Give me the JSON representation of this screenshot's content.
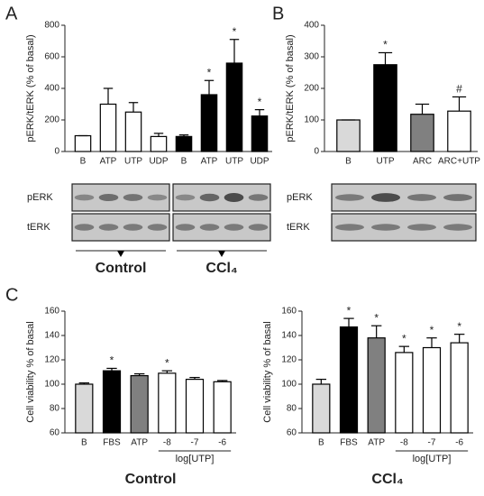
{
  "chart_data": [
    {
      "type": "bar",
      "panel": "A",
      "ylabel": "pERK/tERK (% of basal)",
      "categories": [
        "B",
        "ATP",
        "UTP",
        "UDP",
        "B",
        "ATP",
        "UTP",
        "UDP"
      ],
      "values": [
        100,
        300,
        250,
        95,
        95,
        360,
        560,
        225
      ],
      "errors": [
        0,
        100,
        60,
        20,
        10,
        90,
        150,
        40
      ],
      "colors": [
        "#ffffff",
        "#ffffff",
        "#ffffff",
        "#ffffff",
        "#000000",
        "#000000",
        "#000000",
        "#000000"
      ],
      "annotations": [
        null,
        null,
        null,
        null,
        null,
        "*",
        "*",
        "*"
      ],
      "ylim": [
        0,
        800
      ],
      "yticks": [
        0,
        200,
        400,
        600,
        800
      ],
      "blot_labels": [
        "pERK",
        "tERK"
      ],
      "group_labels": [
        "Control",
        "CCl₄"
      ]
    },
    {
      "type": "bar",
      "panel": "B",
      "ylabel": "pERK/tERK (% of basal)",
      "categories": [
        "B",
        "UTP",
        "ARC",
        "ARC+UTP"
      ],
      "values": [
        100,
        275,
        118,
        128
      ],
      "errors": [
        0,
        38,
        32,
        45
      ],
      "colors": [
        "#d9d9d9",
        "#000000",
        "#808080",
        "#ffffff"
      ],
      "annotations": [
        null,
        "*",
        null,
        "#"
      ],
      "ylim": [
        0,
        400
      ],
      "yticks": [
        0,
        100,
        200,
        300,
        400
      ],
      "blot_labels": [
        "pERK",
        "tERK"
      ]
    },
    {
      "type": "bar",
      "panel": "C",
      "ylabel": "Cell viability % of basal",
      "title": "Control",
      "xlabel": "log[UTP]",
      "categories": [
        "B",
        "FBS",
        "ATP",
        "-8",
        "-7",
        "-6"
      ],
      "values": [
        100,
        111,
        107,
        109,
        104,
        102
      ],
      "errors": [
        1,
        2,
        1.5,
        2,
        1.5,
        1
      ],
      "colors": [
        "#d9d9d9",
        "#000000",
        "#808080",
        "#ffffff",
        "#ffffff",
        "#ffffff"
      ],
      "annotations": [
        null,
        "*",
        null,
        "*",
        null,
        null
      ],
      "ylim": [
        60,
        160
      ],
      "yticks": [
        60,
        80,
        100,
        120,
        140,
        160
      ]
    },
    {
      "type": "bar",
      "ylabel": "Cell viability % of basal",
      "title": "CCl₄",
      "xlabel": "log[UTP]",
      "categories": [
        "B",
        "FBS",
        "ATP",
        "-8",
        "-7",
        "-6"
      ],
      "values": [
        100,
        147,
        138,
        126,
        130,
        134
      ],
      "errors": [
        4,
        7,
        10,
        5,
        8,
        7
      ],
      "colors": [
        "#d9d9d9",
        "#000000",
        "#808080",
        "#ffffff",
        "#ffffff",
        "#ffffff"
      ],
      "annotations": [
        null,
        "*",
        "*",
        "*",
        "*",
        "*"
      ],
      "ylim": [
        60,
        160
      ],
      "yticks": [
        60,
        80,
        100,
        120,
        140,
        160
      ]
    }
  ]
}
